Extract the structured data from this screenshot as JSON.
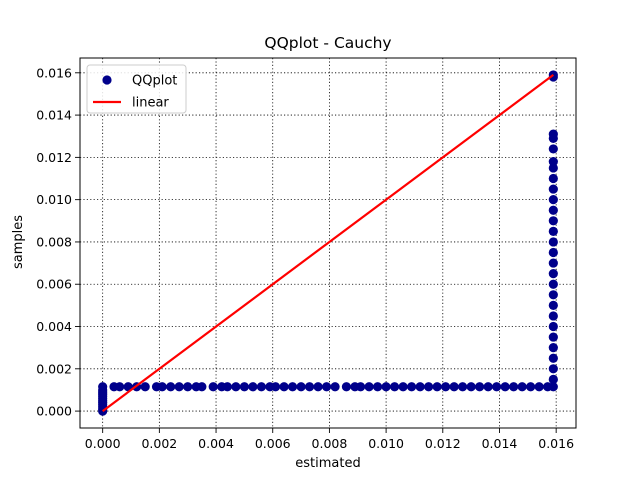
{
  "chart_data": {
    "type": "scatter",
    "title": "QQplot - Cauchy",
    "xlabel": "estimated",
    "ylabel": "samples",
    "xlim": [
      -0.0008,
      0.0167
    ],
    "ylim": [
      -0.0008,
      0.0167
    ],
    "xticks": [
      0.0,
      0.002,
      0.004,
      0.006,
      0.008,
      0.01,
      0.012,
      0.014,
      0.016
    ],
    "xtick_labels": [
      "0.000",
      "0.002",
      "0.004",
      "0.006",
      "0.008",
      "0.010",
      "0.012",
      "0.014",
      "0.016"
    ],
    "yticks": [
      0.0,
      0.002,
      0.004,
      0.006,
      0.008,
      0.01,
      0.012,
      0.014,
      0.016
    ],
    "ytick_labels": [
      "0.000",
      "0.002",
      "0.004",
      "0.006",
      "0.008",
      "0.010",
      "0.012",
      "0.014",
      "0.016"
    ],
    "grid": true,
    "legend": "upper-left",
    "series": [
      {
        "name": "QQplot",
        "kind": "scatter",
        "color": "#00008b",
        "points": [
          [
            0.0,
            0.0
          ],
          [
            0.0,
            0.0001
          ],
          [
            0.0,
            0.0002
          ],
          [
            0.0,
            0.0003
          ],
          [
            0.0,
            0.0004
          ],
          [
            0.0,
            0.0005
          ],
          [
            0.0,
            0.0006
          ],
          [
            0.0,
            0.0007
          ],
          [
            0.0,
            0.0008
          ],
          [
            0.0,
            0.0009
          ],
          [
            0.0,
            0.001
          ],
          [
            0.0,
            0.00115
          ],
          [
            0.0004,
            0.00115
          ],
          [
            0.0006,
            0.00115
          ],
          [
            0.0009,
            0.00115
          ],
          [
            0.0012,
            0.00115
          ],
          [
            0.0015,
            0.00115
          ],
          [
            0.0019,
            0.00115
          ],
          [
            0.0021,
            0.00115
          ],
          [
            0.0024,
            0.00115
          ],
          [
            0.0027,
            0.00115
          ],
          [
            0.003,
            0.00115
          ],
          [
            0.0033,
            0.00115
          ],
          [
            0.0035,
            0.00115
          ],
          [
            0.0039,
            0.00115
          ],
          [
            0.0042,
            0.00115
          ],
          [
            0.0044,
            0.00115
          ],
          [
            0.0047,
            0.00115
          ],
          [
            0.005,
            0.00115
          ],
          [
            0.0053,
            0.00115
          ],
          [
            0.0056,
            0.00115
          ],
          [
            0.0059,
            0.00115
          ],
          [
            0.0061,
            0.00115
          ],
          [
            0.0064,
            0.00115
          ],
          [
            0.0067,
            0.00115
          ],
          [
            0.007,
            0.00115
          ],
          [
            0.0073,
            0.00115
          ],
          [
            0.0076,
            0.00115
          ],
          [
            0.0079,
            0.00115
          ],
          [
            0.0082,
            0.00115
          ],
          [
            0.0086,
            0.00115
          ],
          [
            0.0089,
            0.00115
          ],
          [
            0.0091,
            0.00115
          ],
          [
            0.0094,
            0.00115
          ],
          [
            0.0097,
            0.00115
          ],
          [
            0.01,
            0.00115
          ],
          [
            0.0103,
            0.00115
          ],
          [
            0.0106,
            0.00115
          ],
          [
            0.0109,
            0.00115
          ],
          [
            0.0112,
            0.00115
          ],
          [
            0.0115,
            0.00115
          ],
          [
            0.0118,
            0.00115
          ],
          [
            0.0121,
            0.00115
          ],
          [
            0.0124,
            0.00115
          ],
          [
            0.0127,
            0.00115
          ],
          [
            0.013,
            0.00115
          ],
          [
            0.0133,
            0.00115
          ],
          [
            0.0136,
            0.00115
          ],
          [
            0.0139,
            0.00115
          ],
          [
            0.0142,
            0.00115
          ],
          [
            0.0145,
            0.00115
          ],
          [
            0.0148,
            0.00115
          ],
          [
            0.0151,
            0.00115
          ],
          [
            0.0154,
            0.00115
          ],
          [
            0.0157,
            0.00115
          ],
          [
            0.0159,
            0.00115
          ],
          [
            0.0159,
            0.0015
          ],
          [
            0.0159,
            0.002
          ],
          [
            0.0159,
            0.0025
          ],
          [
            0.0159,
            0.003
          ],
          [
            0.0159,
            0.0035
          ],
          [
            0.0159,
            0.004
          ],
          [
            0.0159,
            0.0045
          ],
          [
            0.0159,
            0.005
          ],
          [
            0.0159,
            0.0055
          ],
          [
            0.0159,
            0.006
          ],
          [
            0.0159,
            0.0065
          ],
          [
            0.0159,
            0.007
          ],
          [
            0.0159,
            0.0075
          ],
          [
            0.0159,
            0.008
          ],
          [
            0.0159,
            0.0085
          ],
          [
            0.0159,
            0.009
          ],
          [
            0.0159,
            0.0095
          ],
          [
            0.0159,
            0.01
          ],
          [
            0.0159,
            0.0105
          ],
          [
            0.0159,
            0.011
          ],
          [
            0.0159,
            0.0115
          ],
          [
            0.0159,
            0.0118
          ],
          [
            0.0159,
            0.0124
          ],
          [
            0.0159,
            0.0129
          ],
          [
            0.0159,
            0.0131
          ],
          [
            0.0159,
            0.0158
          ],
          [
            0.0159,
            0.0159
          ]
        ]
      },
      {
        "name": "linear",
        "kind": "line",
        "color": "#ff0000",
        "points": [
          [
            0.0,
            0.0
          ],
          [
            0.0159,
            0.0159
          ]
        ]
      }
    ]
  }
}
